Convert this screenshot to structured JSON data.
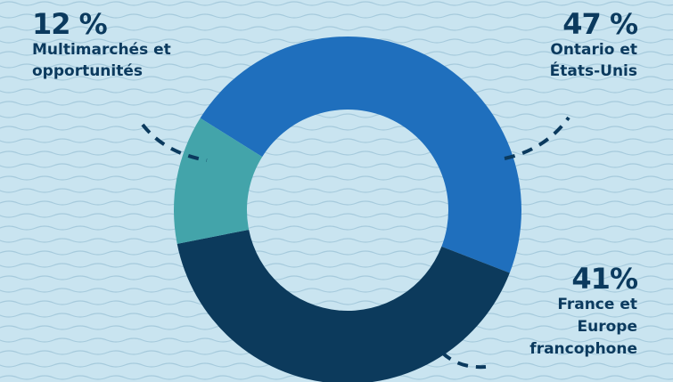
{
  "colors": {
    "background": "#c9e4f0",
    "wave": "#a6cadc",
    "ontario": "#1f6fbd",
    "france": "#0c3a5c",
    "multi": "#43a4aa",
    "text": "#0b3a5e",
    "leader": "#0b3a5e"
  },
  "chart_data": {
    "type": "pie",
    "title": "",
    "donut": true,
    "categories": [
      "Ontario et États-Unis",
      "France et Europe francophone",
      "Multimarchés et opportunités"
    ],
    "values": [
      47,
      41,
      12
    ],
    "slices": [
      {
        "key": "ontario",
        "percent_label": "47 %",
        "label_lines": [
          "Ontario et",
          "États-Unis"
        ],
        "value": 47
      },
      {
        "key": "france",
        "percent_label": "41%",
        "label_lines": [
          "France et",
          "Europe",
          "francophone"
        ],
        "value": 41
      },
      {
        "key": "multi",
        "percent_label": "12 %",
        "label_lines": [
          "Multimarchés et",
          "opportunités"
        ],
        "value": 12
      }
    ]
  }
}
